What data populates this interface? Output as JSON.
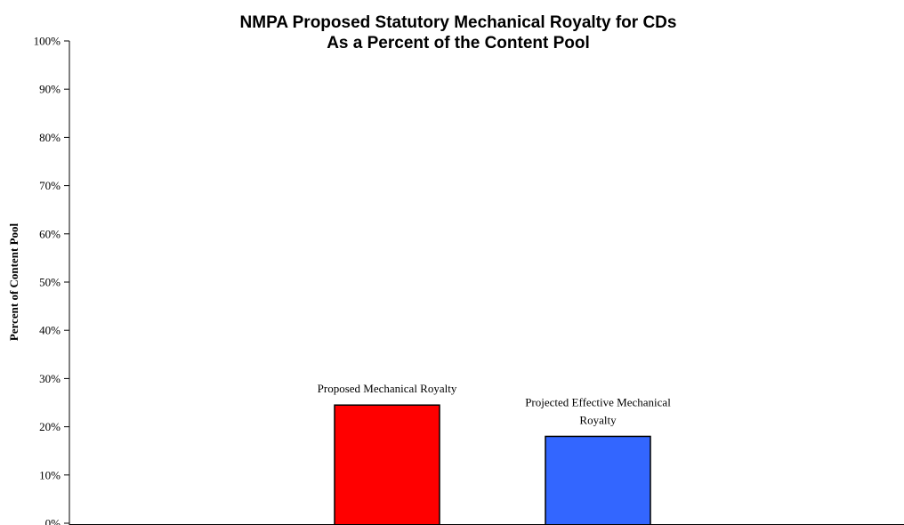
{
  "chart_data": {
    "type": "bar",
    "title": [
      "NMPA Proposed Statutory Mechanical Royalty for CDs",
      "As a Percent of the Content Pool"
    ],
    "xlabel": "",
    "ylabel": "Percent of Content Pool",
    "ylim": [
      0,
      100
    ],
    "yticks": [
      "0%",
      "10%",
      "20%",
      "30%",
      "40%",
      "50%",
      "60%",
      "70%",
      "80%",
      "90%",
      "100%"
    ],
    "grid": false,
    "legend": "none",
    "bars": [
      {
        "label_lines": [
          "Proposed Mechanical Royalty"
        ],
        "value": 24.5,
        "color": "#ff0000"
      },
      {
        "label_lines": [
          "Projected Effective Mechanical",
          "Royalty"
        ],
        "value": 18,
        "color": "#3366ff"
      }
    ]
  }
}
